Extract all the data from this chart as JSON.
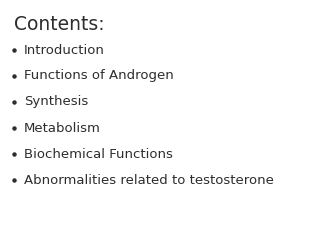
{
  "background_color": "#ffffff",
  "title": "Contents:",
  "title_fontsize": 13.5,
  "title_color": "#2d2d2d",
  "title_fontweight": "normal",
  "bullet_items": [
    "Introduction",
    "Functions of Androgen",
    "Synthesis",
    "Metabolism",
    "Biochemical Functions",
    "Abnormalities related to testosterone"
  ],
  "bullet_fontsize": 9.5,
  "bullet_color": "#2d2d2d",
  "bullet_dot_color": "#2d2d2d"
}
